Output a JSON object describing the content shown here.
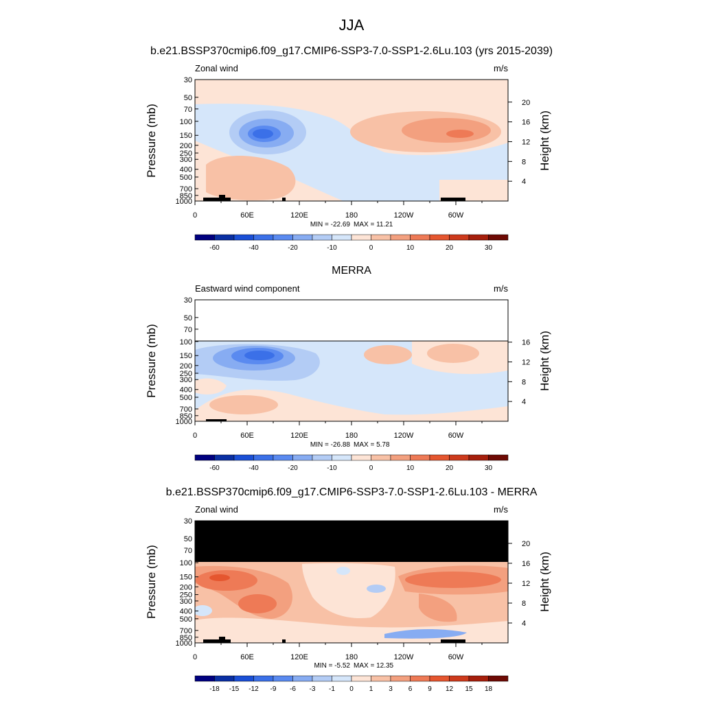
{
  "figure_title": "JJA",
  "chart_data": [
    {
      "type": "heatmap",
      "title": "b.e21.BSSP370cmip6.f09_g17.CMIP6-SSP3-7.0-SSP1-2.6Lu.103 (yrs 2015-2039)",
      "left_label": "Zonal wind",
      "units": "m/s",
      "ylabel": "Pressure (mb)",
      "y2label": "Height (km)",
      "y_ticks": [
        30,
        50,
        70,
        100,
        150,
        200,
        250,
        300,
        400,
        500,
        700,
        850,
        1000
      ],
      "y2_ticks": [
        20,
        16,
        12,
        8,
        4
      ],
      "x_ticks": [
        "0",
        "60E",
        "120E",
        "180",
        "120W",
        "60W"
      ],
      "xlim": [
        0,
        360
      ],
      "ylim": [
        1000,
        30
      ],
      "stats": {
        "min_label": "MIN = -22.69",
        "max_label": "MAX =  11.21"
      },
      "colorbar": {
        "levels": [
          "-60",
          "-40",
          "-20",
          "-10",
          "0",
          "10",
          "20",
          "30"
        ]
      },
      "features": [
        {
          "lon": 85,
          "p": 150,
          "value": -22.69
        },
        {
          "lon": 310,
          "p": 150,
          "value": 11.21
        },
        {
          "lon": 60,
          "p": 600,
          "value": 5
        },
        {
          "lon": 280,
          "p": 150,
          "value": 6
        }
      ]
    },
    {
      "type": "heatmap",
      "title": "MERRA",
      "left_label": "Eastward wind component",
      "units": "m/s",
      "ylabel": "Pressure (mb)",
      "y2label": "Height (km)",
      "y_ticks": [
        30,
        50,
        70,
        100,
        150,
        200,
        250,
        300,
        400,
        500,
        700,
        850,
        1000
      ],
      "y2_ticks": [
        16,
        12,
        8,
        4
      ],
      "x_ticks": [
        "0",
        "60E",
        "120E",
        "180",
        "120W",
        "60W"
      ],
      "xlim": [
        0,
        360
      ],
      "ylim": [
        1000,
        30
      ],
      "data_top_p": 100,
      "stats": {
        "min_label": "MIN = -26.88",
        "max_label": "MAX =   5.78"
      },
      "colorbar": {
        "levels": [
          "-60",
          "-40",
          "-20",
          "-10",
          "0",
          "10",
          "20",
          "30"
        ]
      },
      "features": [
        {
          "lon": 75,
          "p": 160,
          "value": -26.88
        },
        {
          "lon": 55,
          "p": 700,
          "value": 4
        },
        {
          "lon": 295,
          "p": 150,
          "value": 5.78
        }
      ]
    },
    {
      "type": "heatmap",
      "title": "b.e21.BSSP370cmip6.f09_g17.CMIP6-SSP3-7.0-SSP1-2.6Lu.103 - MERRA",
      "left_label": "Zonal wind",
      "units": "m/s",
      "ylabel": "Pressure (mb)",
      "y2label": "Height (km)",
      "y_ticks": [
        30,
        50,
        70,
        100,
        150,
        200,
        250,
        300,
        400,
        500,
        700,
        850,
        1000
      ],
      "y2_ticks": [
        20,
        16,
        12,
        8,
        4
      ],
      "x_ticks": [
        "0",
        "60E",
        "120E",
        "180",
        "120W",
        "60W"
      ],
      "xlim": [
        0,
        360
      ],
      "ylim": [
        1000,
        30
      ],
      "masked_above_p": 100,
      "stats": {
        "min_label": "MIN =  -5.52",
        "max_label": "MAX =  12.35"
      },
      "colorbar": {
        "levels": [
          "-18",
          "-15",
          "-12",
          "-9",
          "-6",
          "-3",
          "-1",
          "0",
          "1",
          "3",
          "6",
          "9",
          "12",
          "15",
          "18"
        ]
      },
      "features": [
        {
          "lon": 30,
          "p": 170,
          "value": 12.35
        },
        {
          "lon": 80,
          "p": 400,
          "value": 8
        },
        {
          "lon": 300,
          "p": 170,
          "value": 9
        },
        {
          "lon": 270,
          "p": 900,
          "value": -5.52
        }
      ]
    }
  ],
  "colors": {
    "sequence": [
      "#00007f",
      "#0a2fa3",
      "#1a4fd6",
      "#3b70e8",
      "#5a8af0",
      "#87acf2",
      "#b3ccf5",
      "#d5e6fa",
      "#fde4d6",
      "#f8c1a6",
      "#f3a07f",
      "#ee7a56",
      "#e5562f",
      "#cd3a1c",
      "#a61f0c",
      "#6e0a04"
    ],
    "mask": "#000000",
    "land": "#000000"
  }
}
